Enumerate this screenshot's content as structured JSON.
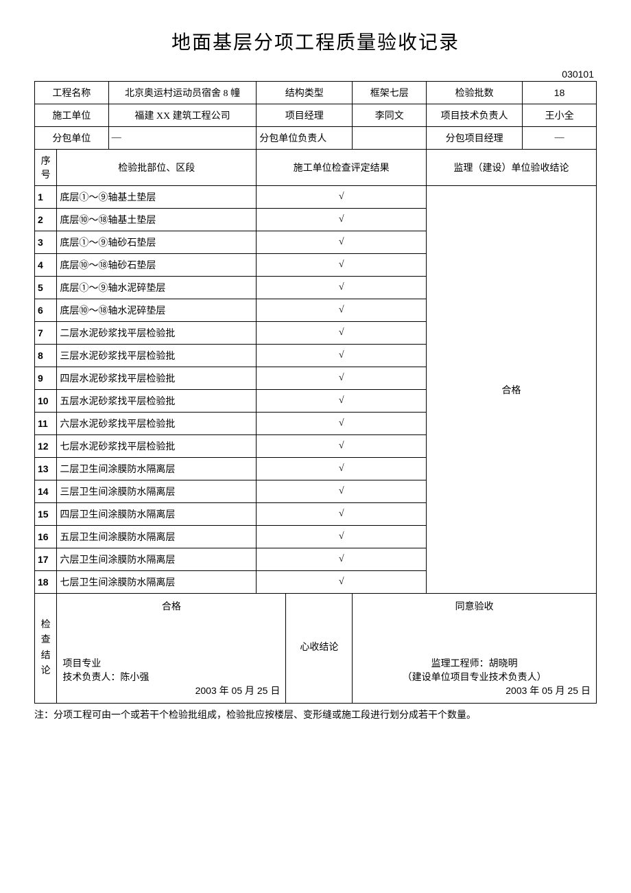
{
  "title": "地面基层分项工程质量验收记录",
  "doc_number": "030101",
  "header": {
    "project_name_label": "工程名称",
    "project_name": "北京奥运村运动员宿舍 8 幢",
    "structure_type_label": "结构类型",
    "structure_type": "框架七层",
    "inspection_count_label": "检验批数",
    "inspection_count": "18",
    "construction_unit_label": "施工单位",
    "construction_unit": "福建 XX 建筑工程公司",
    "project_manager_label": "项目经理",
    "project_manager": "李同文",
    "tech_lead_label": "项目技术负责人",
    "tech_lead": "王小全",
    "subcontractor_label": "分包单位",
    "subcontractor": "—",
    "subcontractor_lead_label": "分包单位负责人",
    "subcontractor_lead": "",
    "subcontractor_pm_label": "分包项目经理",
    "subcontractor_pm": "—"
  },
  "columns": {
    "seq": "序号",
    "location": "检验批部位、区段",
    "result": "施工单位检查评定结果",
    "conclusion": "监理（建设）单位验收结论"
  },
  "rows": [
    {
      "seq": "1",
      "location": "底层①～⑨轴基土垫层",
      "result": "√"
    },
    {
      "seq": "2",
      "location": "底层⑩～⑱轴基土垫层",
      "result": "√"
    },
    {
      "seq": "3",
      "location": "底层①～⑨轴砂石垫层",
      "result": "√"
    },
    {
      "seq": "4",
      "location": "底层⑩～⑱轴砂石垫层",
      "result": "√"
    },
    {
      "seq": "5",
      "location": "底层①～⑨轴水泥碎垫层",
      "result": "√"
    },
    {
      "seq": "6",
      "location": "底层⑩～⑱轴水泥碎垫层",
      "result": "√"
    },
    {
      "seq": "7",
      "location": "二层水泥砂浆找平层检验批",
      "result": "√"
    },
    {
      "seq": "8",
      "location": "三层水泥砂浆找平层检验批",
      "result": "√"
    },
    {
      "seq": "9",
      "location": "四层水泥砂浆找平层检验批",
      "result": "√"
    },
    {
      "seq": "10",
      "location": "五层水泥砂浆找平层检验批",
      "result": "√"
    },
    {
      "seq": "11",
      "location": "六层水泥砂浆找平层检验批",
      "result": "√"
    },
    {
      "seq": "12",
      "location": "七层水泥砂浆找平层检验批",
      "result": "√"
    },
    {
      "seq": "13",
      "location": "二层卫生间涂膜防水隔离层",
      "result": "√"
    },
    {
      "seq": "14",
      "location": "三层卫生间涂膜防水隔离层",
      "result": "√"
    },
    {
      "seq": "15",
      "location": "四层卫生间涂膜防水隔离层",
      "result": "√"
    },
    {
      "seq": "16",
      "location": "五层卫生间涂膜防水隔离层",
      "result": "√"
    },
    {
      "seq": "17",
      "location": "六层卫生间涂膜防水隔离层",
      "result": "√"
    },
    {
      "seq": "18",
      "location": "七层卫生间涂膜防水隔离层",
      "result": "√"
    }
  ],
  "overall_conclusion": "合格",
  "footer": {
    "check_label": "检查结论",
    "check_status": "合格",
    "check_role": "项目专业",
    "check_person": "技术负责人：陈小强",
    "check_date": "2003 年 05 月 25 日",
    "accept_label": "心收结论",
    "accept_status": "同意验收",
    "accept_engineer": "监理工程师：胡晓明",
    "accept_note": "（建设单位项目专业技术负责人）",
    "accept_date": "2003 年 05 月 25 日"
  },
  "note": "注：分项工程可由一个或若干个检验批组成，检验批应按楼层、变形缝或施工段进行划分成若干个数量。"
}
